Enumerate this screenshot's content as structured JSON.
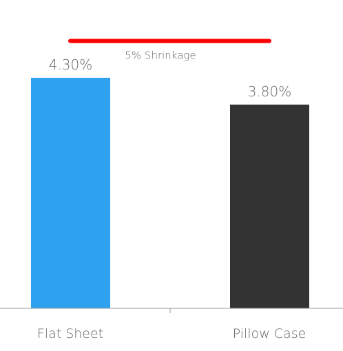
{
  "chart_data": {
    "type": "bar",
    "categories": [
      "Flat Sheet",
      "Pillow Case"
    ],
    "values": [
      4.3,
      3.8
    ],
    "value_labels": [
      "4.30%",
      "3.80%"
    ],
    "colors": [
      "#2ea1ef",
      "#333333"
    ],
    "ylim": [
      0,
      5
    ],
    "grid": false,
    "reference_line": {
      "value": 5,
      "label": "5% Shrinkage",
      "color": "#ff0000"
    }
  }
}
